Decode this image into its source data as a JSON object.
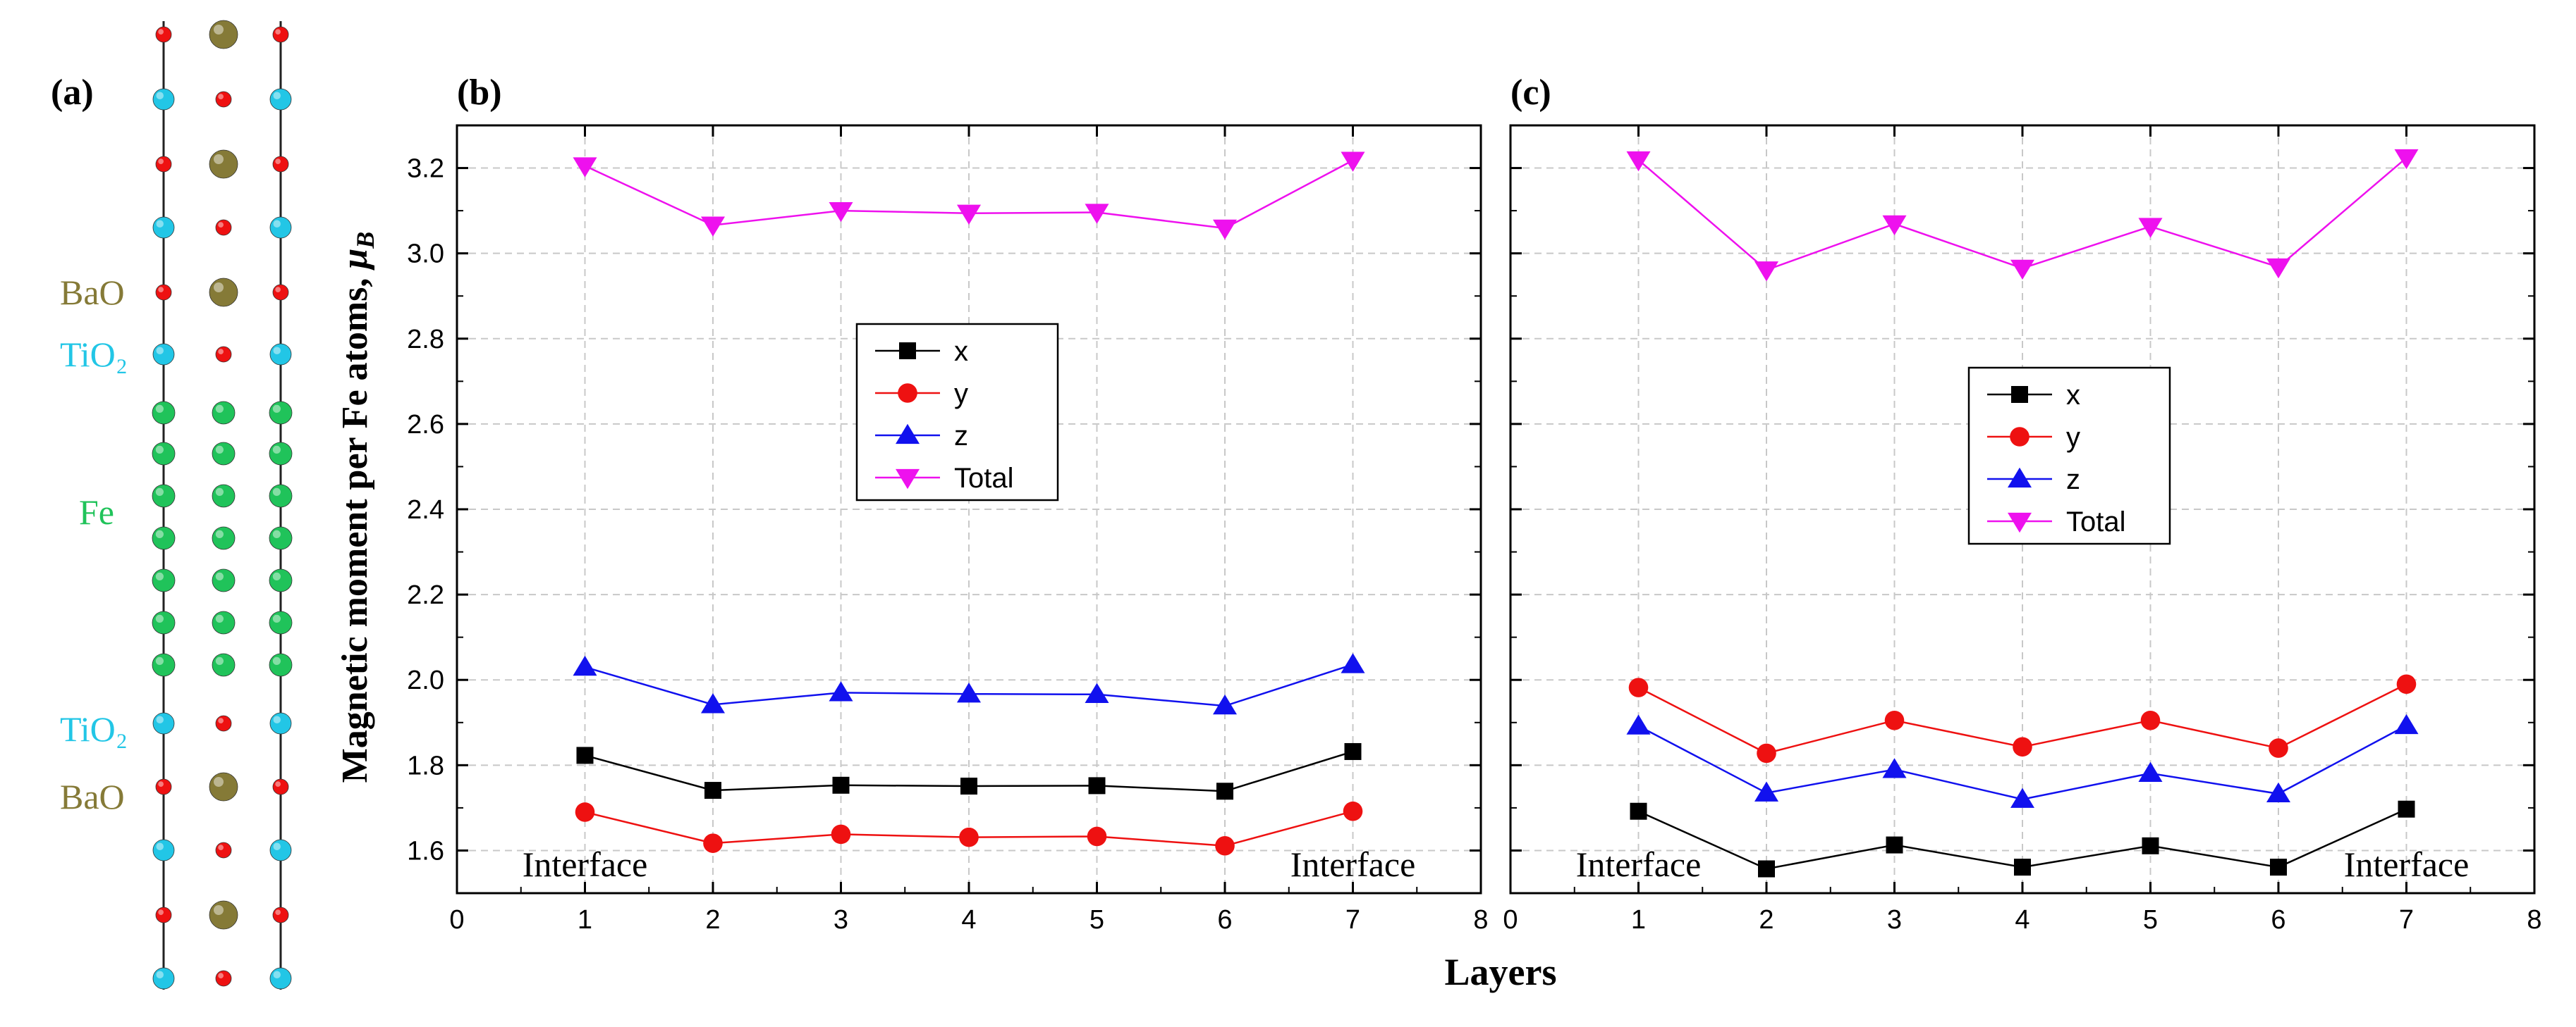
{
  "figure": {
    "ylabel_main": "Magnetic moment per Fe atoms, ",
    "ylabel_unit": "μ",
    "ylabel_sub": "B",
    "xlabel": "Layers"
  },
  "structure": {
    "panel_label": "(a)",
    "labels": {
      "bao": "BaO",
      "tio": "TiO",
      "sub2": "₂",
      "fe": "Fe"
    },
    "colors": {
      "ba": "#857a37",
      "o": "#ee1111",
      "ti": "#22c6e6",
      "fe": "#20c35a",
      "line": "#222222"
    }
  },
  "chart_data": [
    {
      "type": "line",
      "panel_label": "(b)",
      "x": [
        1,
        2,
        3,
        4,
        5,
        6,
        7
      ],
      "xlim": [
        0,
        8
      ],
      "ylim": [
        1.5,
        3.3
      ],
      "x_ticks": [
        "0",
        "1",
        "2",
        "3",
        "4",
        "5",
        "6",
        "7",
        "8"
      ],
      "y_ticks": [
        "1.6",
        "1.8",
        "2.0",
        "2.2",
        "2.4",
        "2.6",
        "2.8",
        "3.0",
        "3.2"
      ],
      "grid": true,
      "legend_position": "center",
      "annotations": [
        "Interface",
        "Interface"
      ],
      "series": [
        {
          "name": "x",
          "color": "#000000",
          "marker": "square",
          "values": [
            1.823,
            1.741,
            1.753,
            1.751,
            1.752,
            1.739,
            1.832
          ]
        },
        {
          "name": "y",
          "color": "#ee1111",
          "marker": "circle",
          "values": [
            1.69,
            1.617,
            1.638,
            1.631,
            1.633,
            1.611,
            1.692
          ]
        },
        {
          "name": "z",
          "color": "#1111ee",
          "marker": "triangle-up",
          "values": [
            2.03,
            1.942,
            1.97,
            1.967,
            1.966,
            1.939,
            2.036
          ]
        },
        {
          "name": "Total",
          "color": "#ee11ee",
          "marker": "triangle-down",
          "values": [
            3.205,
            3.066,
            3.1,
            3.094,
            3.096,
            3.059,
            3.218
          ]
        }
      ]
    },
    {
      "type": "line",
      "panel_label": "(c)",
      "x": [
        1,
        2,
        3,
        4,
        5,
        6,
        7
      ],
      "xlim": [
        0,
        8
      ],
      "ylim": [
        1.5,
        3.3
      ],
      "x_ticks": [
        "0",
        "1",
        "2",
        "3",
        "4",
        "5",
        "6",
        "7",
        "8"
      ],
      "y_ticks": [
        "1.6",
        "1.8",
        "2.0",
        "2.2",
        "2.4",
        "2.6",
        "2.8",
        "3.0",
        "3.2"
      ],
      "grid": true,
      "legend_position": "center",
      "annotations": [
        "Interface",
        "Interface"
      ],
      "series": [
        {
          "name": "x",
          "color": "#000000",
          "marker": "square",
          "values": [
            1.692,
            1.557,
            1.613,
            1.561,
            1.611,
            1.561,
            1.697
          ]
        },
        {
          "name": "y",
          "color": "#ee1111",
          "marker": "circle",
          "values": [
            1.982,
            1.828,
            1.905,
            1.843,
            1.905,
            1.84,
            1.99
          ]
        },
        {
          "name": "z",
          "color": "#1111ee",
          "marker": "triangle-up",
          "values": [
            1.892,
            1.735,
            1.79,
            1.72,
            1.781,
            1.733,
            1.893
          ]
        },
        {
          "name": "Total",
          "color": "#ee11ee",
          "marker": "triangle-down",
          "values": [
            3.219,
            2.961,
            3.069,
            2.965,
            3.063,
            2.968,
            3.224
          ]
        }
      ]
    }
  ]
}
